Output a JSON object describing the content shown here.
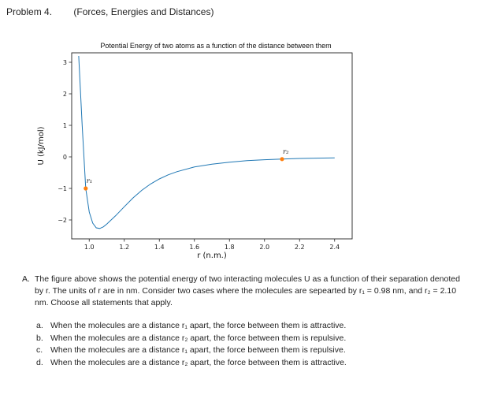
{
  "header": {
    "problem": "Problem 4.",
    "subtitle": "(Forces, Energies and Distances)"
  },
  "chart_data": {
    "type": "line",
    "title": "Potential Energy of two atoms as a function of the distance between them",
    "xlabel": "r (n.m.)",
    "ylabel": "U (kJ/mol)",
    "xlim": [
      0.9,
      2.5
    ],
    "ylim": [
      -2.6,
      3.3
    ],
    "xticks": [
      "1.0",
      "1.2",
      "1.4",
      "1.6",
      "1.8",
      "2.0",
      "2.2",
      "2.4"
    ],
    "yticks": [
      "−2",
      "−1",
      "0",
      "1",
      "2",
      "3"
    ],
    "series": [
      {
        "color": "#1f77b4",
        "x": [
          0.94,
          0.96,
          0.98,
          1.0,
          1.02,
          1.04,
          1.06,
          1.08,
          1.1,
          1.15,
          1.2,
          1.25,
          1.3,
          1.35,
          1.4,
          1.45,
          1.5,
          1.6,
          1.7,
          1.8,
          1.9,
          2.0,
          2.1,
          2.2,
          2.3,
          2.4
        ],
        "y": [
          3.2,
          1.0,
          -1.0,
          -1.75,
          -2.1,
          -2.25,
          -2.27,
          -2.22,
          -2.13,
          -1.87,
          -1.58,
          -1.3,
          -1.06,
          -0.86,
          -0.7,
          -0.57,
          -0.47,
          -0.32,
          -0.23,
          -0.17,
          -0.12,
          -0.09,
          -0.07,
          -0.05,
          -0.04,
          -0.03
        ]
      }
    ],
    "points": [
      {
        "label": "r₁",
        "x": 0.98,
        "y": -1.0,
        "color": "#ff7f0e"
      },
      {
        "label": "r₂",
        "x": 2.1,
        "y": -0.07,
        "color": "#ff7f0e"
      }
    ],
    "grid": false
  },
  "question": {
    "letter": "A.",
    "text": "The figure above shows the potential energy of two interacting molecules U as a function of their separation denoted by r. The units of r are in nm. Consider two cases where the molecules are sepearted by r₁ = 0.98 nm, and r₂ = 2.10 nm. Choose all statements that apply.",
    "options": [
      {
        "label": "a.",
        "text": "When the molecules are a distance r₁ apart, the force between them is attractive."
      },
      {
        "label": "b.",
        "text": "When the molecules are a distance r₂ apart, the force between them is repulsive."
      },
      {
        "label": "c.",
        "text": "When the molecules are a distance r₁ apart, the force between them is repulsive."
      },
      {
        "label": "d.",
        "text": "When the molecules are a distance r₂ apart, the force between them is attractive."
      }
    ]
  }
}
